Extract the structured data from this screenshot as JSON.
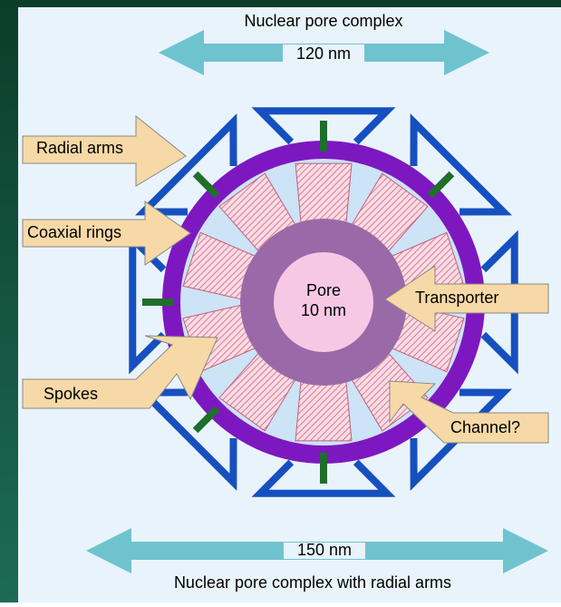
{
  "top": {
    "label": "Nuclear pore complex",
    "width": "120 nm"
  },
  "bottom": {
    "width": "150 nm",
    "label": "Nuclear pore complex with radial arms"
  },
  "pore": {
    "label": "Pore",
    "size": "10 nm"
  },
  "callouts": [
    "Radial arms",
    "Coaxial rings",
    "Transporter",
    "Spokes",
    "Channel?"
  ]
}
